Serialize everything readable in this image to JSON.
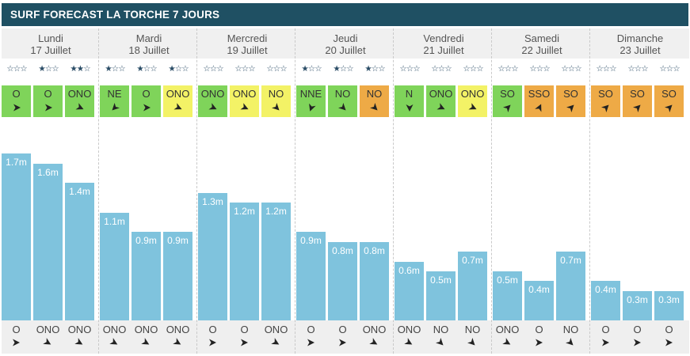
{
  "title": "SURF FORECAST LA TORCHE 7 JOURS",
  "colors": {
    "header": "#1f5063",
    "bar": "#7fc3dd",
    "green": "#7fd45a",
    "yellow": "#f3f266",
    "orange": "#eeaa46"
  },
  "days": [
    {
      "name": "Lundi",
      "date": "17 Juillet",
      "slots": [
        {
          "stars": 0,
          "wind": "O",
          "wind_color": "green",
          "wind_angle": 90,
          "height": 1.7,
          "height_label": "1.7m",
          "swell": "O",
          "swell_angle": 90
        },
        {
          "stars": 1,
          "wind": "O",
          "wind_color": "green",
          "wind_angle": 90,
          "height": 1.6,
          "height_label": "1.6m",
          "swell": "ONO",
          "swell_angle": 120
        },
        {
          "stars": 2,
          "wind": "ONO",
          "wind_color": "green",
          "wind_angle": 115,
          "height": 1.4,
          "height_label": "1.4m",
          "swell": "ONO",
          "swell_angle": 120
        }
      ]
    },
    {
      "name": "Mardi",
      "date": "18 Juillet",
      "slots": [
        {
          "stars": 1,
          "wind": "NE",
          "wind_color": "green",
          "wind_angle": 225,
          "height": 1.1,
          "height_label": "1.1m",
          "swell": "ONO",
          "swell_angle": 120
        },
        {
          "stars": 1,
          "wind": "O",
          "wind_color": "green",
          "wind_angle": 90,
          "height": 0.9,
          "height_label": "0.9m",
          "swell": "ONO",
          "swell_angle": 120
        },
        {
          "stars": 1,
          "wind": "ONO",
          "wind_color": "yellow",
          "wind_angle": 115,
          "height": 0.9,
          "height_label": "0.9m",
          "swell": "ONO",
          "swell_angle": 120
        }
      ]
    },
    {
      "name": "Mercredi",
      "date": "19 Juillet",
      "slots": [
        {
          "stars": 0,
          "wind": "ONO",
          "wind_color": "green",
          "wind_angle": 115,
          "height": 1.3,
          "height_label": "1.3m",
          "swell": "O",
          "swell_angle": 90
        },
        {
          "stars": 0,
          "wind": "ONO",
          "wind_color": "yellow",
          "wind_angle": 115,
          "height": 1.2,
          "height_label": "1.2m",
          "swell": "O",
          "swell_angle": 90
        },
        {
          "stars": 0,
          "wind": "NO",
          "wind_color": "yellow",
          "wind_angle": 135,
          "height": 1.2,
          "height_label": "1.2m",
          "swell": "ONO",
          "swell_angle": 120
        }
      ]
    },
    {
      "name": "Jeudi",
      "date": "20 Juillet",
      "slots": [
        {
          "stars": 1,
          "wind": "NNE",
          "wind_color": "green",
          "wind_angle": 200,
          "height": 0.9,
          "height_label": "0.9m",
          "swell": "O",
          "swell_angle": 90
        },
        {
          "stars": 1,
          "wind": "NO",
          "wind_color": "green",
          "wind_angle": 135,
          "height": 0.8,
          "height_label": "0.8m",
          "swell": "O",
          "swell_angle": 90
        },
        {
          "stars": 1,
          "wind": "NO",
          "wind_color": "orange",
          "wind_angle": 135,
          "height": 0.8,
          "height_label": "0.8m",
          "swell": "ONO",
          "swell_angle": 120
        }
      ]
    },
    {
      "name": "Vendredi",
      "date": "21 Juillet",
      "slots": [
        {
          "stars": 0,
          "wind": "N",
          "wind_color": "green",
          "wind_angle": 180,
          "height": 0.6,
          "height_label": "0.6m",
          "swell": "ONO",
          "swell_angle": 120
        },
        {
          "stars": 0,
          "wind": "ONO",
          "wind_color": "green",
          "wind_angle": 115,
          "height": 0.5,
          "height_label": "0.5m",
          "swell": "NO",
          "swell_angle": 135
        },
        {
          "stars": 0,
          "wind": "ONO",
          "wind_color": "yellow",
          "wind_angle": 115,
          "height": 0.7,
          "height_label": "0.7m",
          "swell": "NO",
          "swell_angle": 135
        }
      ]
    },
    {
      "name": "Samedi",
      "date": "22 Juillet",
      "slots": [
        {
          "stars": 0,
          "wind": "SO",
          "wind_color": "green",
          "wind_angle": 45,
          "height": 0.5,
          "height_label": "0.5m",
          "swell": "ONO",
          "swell_angle": 120
        },
        {
          "stars": 0,
          "wind": "SSO",
          "wind_color": "orange",
          "wind_angle": 25,
          "height": 0.4,
          "height_label": "0.4m",
          "swell": "O",
          "swell_angle": 90
        },
        {
          "stars": 0,
          "wind": "SO",
          "wind_color": "orange",
          "wind_angle": 45,
          "height": 0.7,
          "height_label": "0.7m",
          "swell": "NO",
          "swell_angle": 135
        }
      ]
    },
    {
      "name": "Dimanche",
      "date": "23 Juillet",
      "slots": [
        {
          "stars": 0,
          "wind": "SO",
          "wind_color": "orange",
          "wind_angle": 45,
          "height": 0.4,
          "height_label": "0.4m",
          "swell": "O",
          "swell_angle": 90
        },
        {
          "stars": 0,
          "wind": "SO",
          "wind_color": "orange",
          "wind_angle": 45,
          "height": 0.3,
          "height_label": "0.3m",
          "swell": "O",
          "swell_angle": 90
        },
        {
          "stars": 0,
          "wind": "SO",
          "wind_color": "orange",
          "wind_angle": 45,
          "height": 0.3,
          "height_label": "0.3m",
          "swell": "O",
          "swell_angle": 90
        }
      ]
    }
  ]
}
